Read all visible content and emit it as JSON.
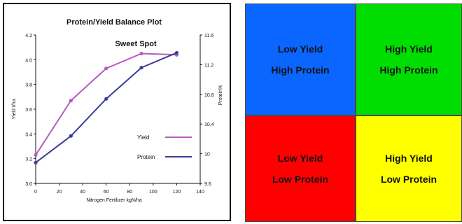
{
  "chart_data": {
    "type": "line",
    "title": "Protein/Yield Balance Plot",
    "annotation": "Sweet Spot",
    "xlabel": "Nitrogen Fertilizer kgN/ha",
    "ylabel": "Yield t/ha",
    "y2label": "Protein%",
    "xlim": [
      0,
      140
    ],
    "ylim": [
      3.0,
      4.2
    ],
    "y2lim": [
      9.6,
      11.6
    ],
    "xticks": [
      "0",
      "20",
      "40",
      "60",
      "80",
      "100",
      "120",
      "140"
    ],
    "yticks": [
      "3.0",
      "3.2",
      "3.4",
      "3.6",
      "3.8",
      "4.0",
      "4.2"
    ],
    "y2ticks": [
      "9.6",
      "10",
      "10.4",
      "10.8",
      "11.2",
      "11.6"
    ],
    "grid": false,
    "legend_position": "center-right",
    "series": [
      {
        "name": "Yield",
        "axis": "left",
        "color": "#b65cc0",
        "x": [
          0,
          30,
          60,
          90,
          120
        ],
        "y": [
          3.23,
          3.67,
          3.93,
          4.05,
          4.04
        ]
      },
      {
        "name": "Protein",
        "axis": "right",
        "color": "#3c3c9c",
        "x": [
          0,
          30,
          60,
          90,
          120
        ],
        "y": [
          9.88,
          10.24,
          10.74,
          11.16,
          11.36
        ]
      }
    ]
  },
  "quadrants": [
    {
      "line1": "Low Yield",
      "line2": "High Protein",
      "color": "#0a66ff"
    },
    {
      "line1": "High Yield",
      "line2": "High Protein",
      "color": "#00dd00"
    },
    {
      "line1": "Low Yield",
      "line2": "Low Protein",
      "color": "#ff0000"
    },
    {
      "line1": "High Yield",
      "line2": "Low Protein",
      "color": "#ffff00"
    }
  ]
}
